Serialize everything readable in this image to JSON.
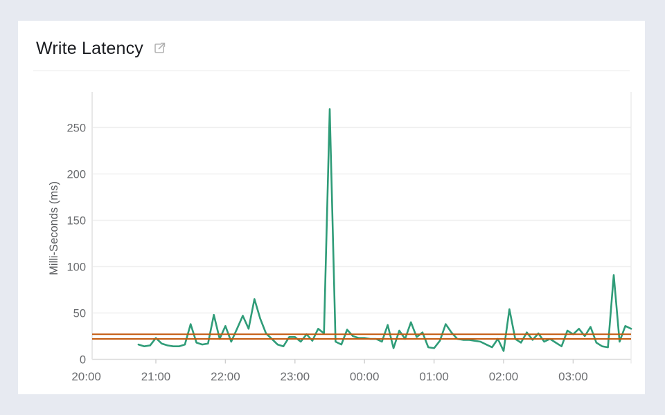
{
  "page": {
    "background": "#e7eaf1"
  },
  "panel": {
    "title": "Write Latency",
    "external_link_icon": "external-link"
  },
  "chart_data": {
    "type": "line",
    "title": "Write Latency",
    "xlabel": "",
    "ylabel": "Milli-Seconds (ms)",
    "x_ticks": [
      "20:00",
      "21:00",
      "22:00",
      "23:00",
      "00:00",
      "01:00",
      "02:00",
      "03:00"
    ],
    "y_ticks": [
      0,
      50,
      100,
      150,
      200,
      250
    ],
    "ylim": [
      0,
      283
    ],
    "grid": "horizontal",
    "legend": "none",
    "style": {
      "grid_color": "#efefef",
      "baseline_color": "#dcdcdc",
      "axis_line_color": "#e6e6e6",
      "tick_color": "#cfcfcf",
      "right_border_color": "#ebebeb"
    },
    "series": [
      {
        "name": "write-latency-ms",
        "color": "#2f9c78",
        "times": [
          "20:45",
          "20:50",
          "20:55",
          "21:00",
          "21:05",
          "21:10",
          "21:15",
          "21:20",
          "21:25",
          "21:30",
          "21:35",
          "21:40",
          "21:45",
          "21:50",
          "21:55",
          "22:00",
          "22:05",
          "22:10",
          "22:15",
          "22:20",
          "22:25",
          "22:30",
          "22:35",
          "22:40",
          "22:45",
          "22:50",
          "22:55",
          "23:00",
          "23:05",
          "23:10",
          "23:15",
          "23:20",
          "23:25",
          "23:30",
          "23:35",
          "23:40",
          "23:45",
          "23:50",
          "23:55",
          "00:00",
          "00:05",
          "00:10",
          "00:15",
          "00:20",
          "00:25",
          "00:30",
          "00:35",
          "00:40",
          "00:45",
          "00:50",
          "00:55",
          "01:00",
          "01:05",
          "01:10",
          "01:15",
          "01:20",
          "01:25",
          "01:30",
          "01:35",
          "01:40",
          "01:45",
          "01:50",
          "01:55",
          "02:00",
          "02:05",
          "02:10",
          "02:15",
          "02:20",
          "02:25",
          "02:30",
          "02:35",
          "02:40",
          "02:45",
          "02:50",
          "02:55",
          "03:00",
          "03:05",
          "03:10",
          "03:15",
          "03:20",
          "03:25",
          "03:30",
          "03:35",
          "03:40",
          "03:45",
          "03:50"
        ],
        "values": [
          16,
          14,
          15,
          23,
          17,
          15,
          14,
          14,
          16,
          38,
          18,
          16,
          17,
          48,
          22,
          36,
          19,
          33,
          47,
          33,
          65,
          44,
          28,
          22,
          16,
          14,
          24,
          24,
          19,
          27,
          20,
          33,
          28,
          270,
          19,
          16,
          32,
          25,
          23,
          23,
          22,
          22,
          19,
          37,
          12,
          31,
          22,
          40,
          24,
          29,
          13,
          12,
          20,
          38,
          29,
          22,
          21,
          21,
          20,
          19,
          16,
          13,
          22,
          9,
          54,
          22,
          18,
          29,
          21,
          28,
          19,
          22,
          18,
          14,
          31,
          27,
          33,
          25,
          35,
          18,
          14,
          13,
          91,
          19,
          36,
          33
        ]
      }
    ],
    "reference_lines": [
      {
        "name": "threshold-upper",
        "value": 27,
        "color": "#c45a0f"
      },
      {
        "name": "threshold-lower",
        "value": 22,
        "color": "#c45a0f"
      }
    ]
  }
}
